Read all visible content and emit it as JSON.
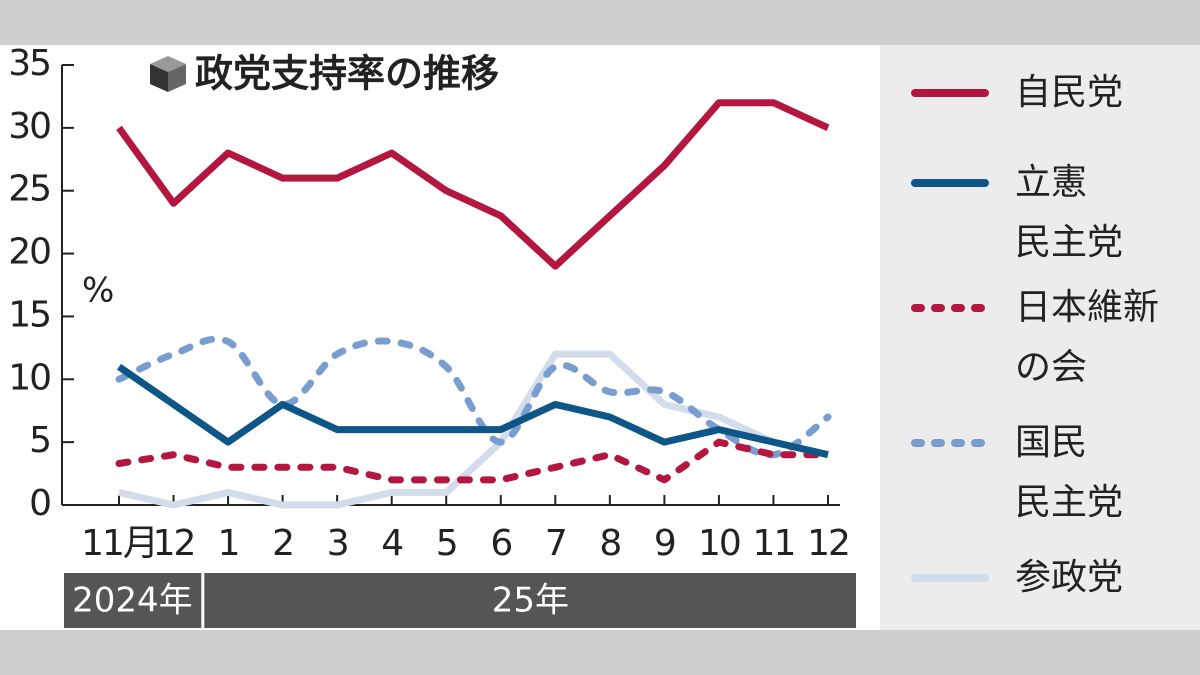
{
  "chart_data": {
    "type": "line",
    "title": "政党支持率の推移",
    "y_unit_label": "%",
    "categories": [
      "11月",
      "12",
      "1",
      "2",
      "3",
      "4",
      "5",
      "6",
      "7",
      "8",
      "9",
      "10",
      "11",
      "12"
    ],
    "x_groups": [
      {
        "label": "2024年",
        "start": 0,
        "end": 1
      },
      {
        "label": "25年",
        "start": 2,
        "end": 13
      }
    ],
    "ylim": [
      0,
      35
    ],
    "yticks": [
      0,
      5,
      10,
      15,
      20,
      25,
      30,
      35
    ],
    "series": [
      {
        "name": "自民党",
        "color": "#b3173f",
        "dash": "solid",
        "values": [
          30,
          24,
          28,
          26,
          26,
          28,
          25,
          23,
          19,
          23,
          27,
          32,
          32,
          30
        ]
      },
      {
        "name": "立憲\n民主党",
        "color": "#0e5688",
        "dash": "solid",
        "values": [
          11,
          8,
          5,
          8,
          6,
          6,
          6,
          6,
          8,
          7,
          5,
          6,
          5,
          4
        ]
      },
      {
        "name": "日本維新\nの会",
        "color": "#b3173f",
        "dash": "dashed",
        "values": [
          3.3,
          4,
          3,
          3,
          3,
          2,
          2,
          2,
          3,
          4,
          2,
          5,
          4,
          4
        ]
      },
      {
        "name": "国民\n民主党",
        "color": "#7a9dd0",
        "dash": "dashed",
        "smooth": true,
        "values": [
          10,
          12,
          13,
          8,
          12,
          13,
          11,
          5,
          11,
          9,
          9,
          6,
          4,
          7
        ]
      },
      {
        "name": "参政党",
        "color": "#d3dcea",
        "dash": "solid",
        "values": [
          1,
          0,
          1,
          0,
          0,
          1,
          1,
          5,
          12,
          12,
          8,
          7,
          5,
          4
        ]
      }
    ]
  }
}
